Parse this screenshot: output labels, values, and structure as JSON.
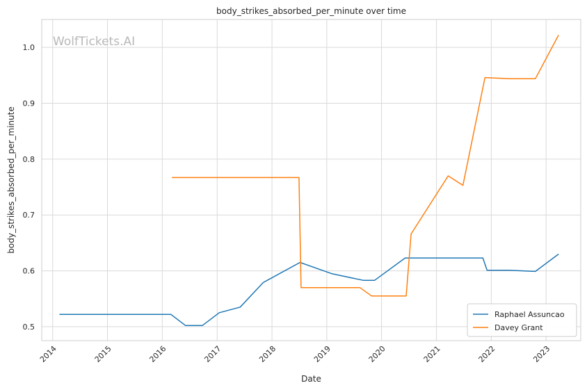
{
  "watermark": "WolfTickets.AI",
  "chart_data": {
    "type": "line",
    "title": "body_strikes_absorbed_per_minute over time",
    "xlabel": "Date",
    "ylabel": "body_strikes_absorbed_per_minute",
    "xlim": [
      "2013-10-20",
      "2023-08-20"
    ],
    "ylim": [
      0.475,
      1.05
    ],
    "x_ticks": [
      "2014",
      "2015",
      "2016",
      "2017",
      "2018",
      "2019",
      "2020",
      "2021",
      "2022",
      "2023"
    ],
    "y_ticks": [
      "0.5",
      "0.6",
      "0.7",
      "0.8",
      "0.9",
      "1.0"
    ],
    "grid": true,
    "legend_position": "bottom-right",
    "series": [
      {
        "name": "Raphael Assuncao",
        "color": "#1f77b4",
        "points": [
          [
            "2014-02-15",
            0.522
          ],
          [
            "2016-02-27",
            0.522
          ],
          [
            "2016-06-04",
            0.502
          ],
          [
            "2016-09-24",
            0.502
          ],
          [
            "2017-01-15",
            0.525
          ],
          [
            "2017-06-03",
            0.535
          ],
          [
            "2017-11-04",
            0.579
          ],
          [
            "2018-07-07",
            0.615
          ],
          [
            "2019-02-02",
            0.595
          ],
          [
            "2019-08-31",
            0.583
          ],
          [
            "2019-11-16",
            0.583
          ],
          [
            "2020-06-06",
            0.623
          ],
          [
            "2021-11-06",
            0.623
          ],
          [
            "2021-12-04",
            0.601
          ],
          [
            "2022-05-01",
            0.601
          ],
          [
            "2022-10-22",
            0.599
          ],
          [
            "2023-03-25",
            0.63
          ]
        ]
      },
      {
        "name": "Davey Grant",
        "color": "#ff7f0e",
        "points": [
          [
            "2016-03-05",
            0.767
          ],
          [
            "2018-06-30",
            0.767
          ],
          [
            "2018-07-14",
            0.57
          ],
          [
            "2019-08-10",
            0.57
          ],
          [
            "2019-10-26",
            0.555
          ],
          [
            "2020-06-13",
            0.555
          ],
          [
            "2020-07-16",
            0.666
          ],
          [
            "2021-03-20",
            0.77
          ],
          [
            "2021-06-26",
            0.753
          ],
          [
            "2021-11-20",
            0.946
          ],
          [
            "2022-05-07",
            0.944
          ],
          [
            "2022-10-22",
            0.944
          ],
          [
            "2023-03-25",
            1.022
          ]
        ]
      }
    ]
  }
}
